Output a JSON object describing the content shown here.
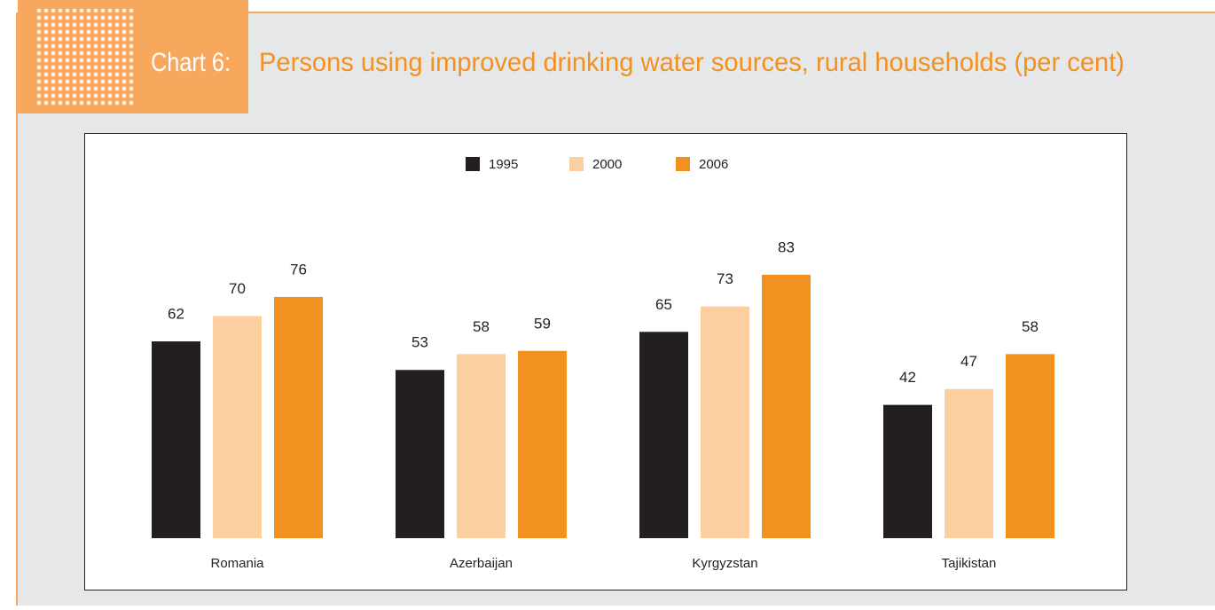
{
  "chart_data": {
    "type": "bar",
    "label": "Chart 6:",
    "title": "Persons using improved drinking water sources, rural households (per cent)",
    "categories": [
      "Romania",
      "Azerbaijan",
      "Kyrgyzstan",
      "Tajikistan"
    ],
    "series": [
      {
        "name": "1995",
        "color": "#231f20",
        "values": [
          62,
          53,
          65,
          42
        ]
      },
      {
        "name": "2000",
        "color": "#fbcfa0",
        "values": [
          70,
          58,
          73,
          47
        ]
      },
      {
        "name": "2006",
        "color": "#f39120",
        "values": [
          76,
          59,
          83,
          58
        ]
      }
    ],
    "legend": "top"
  }
}
